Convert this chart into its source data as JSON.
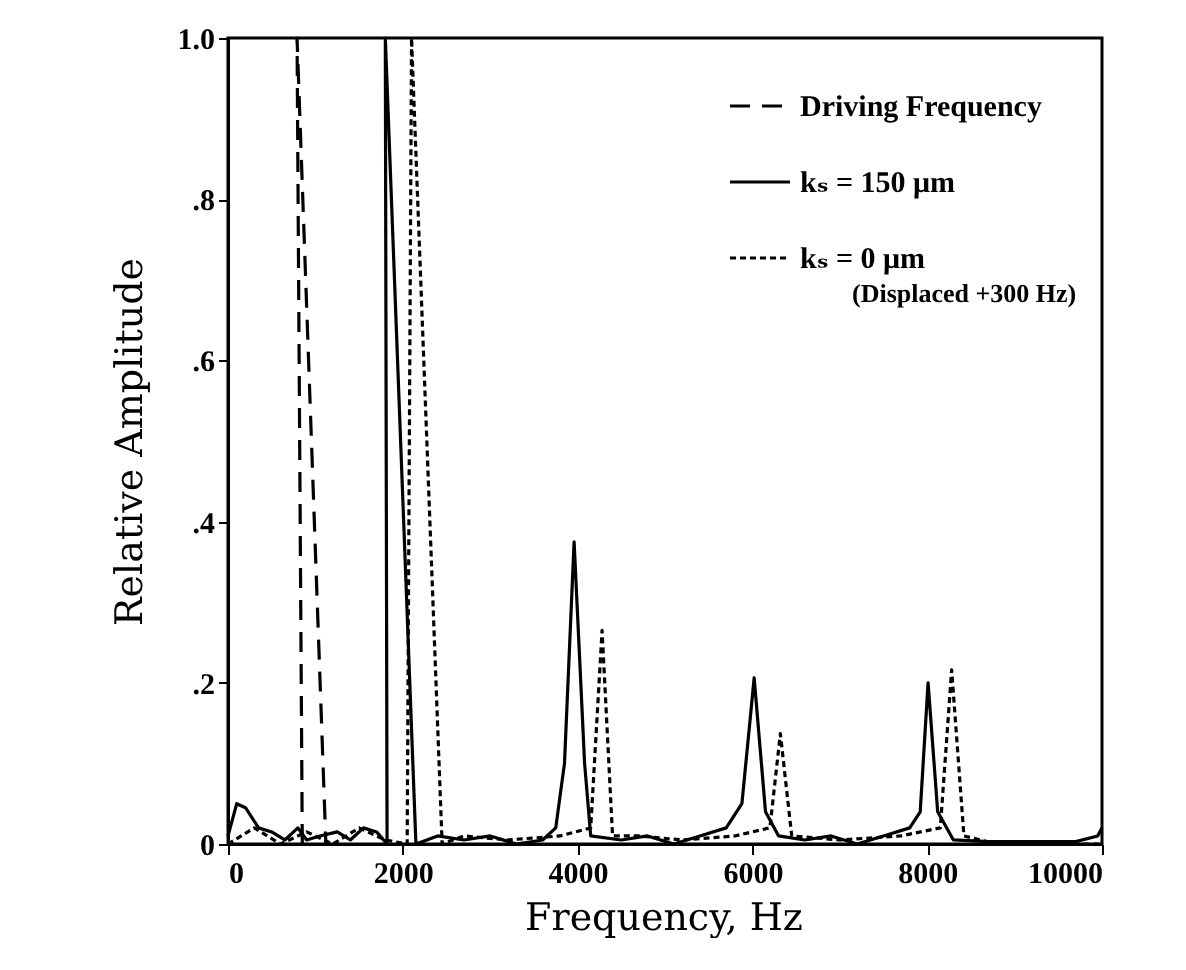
{
  "chart_data": {
    "type": "line",
    "xlabel": "Frequency, Hz",
    "ylabel": "Relative Amplitude",
    "xlim": [
      0,
      10000
    ],
    "xticks": [
      0,
      2000,
      4000,
      6000,
      8000,
      10000
    ],
    "ylim": [
      0,
      1.0
    ],
    "yticks": [
      {
        "value": 0,
        "label": "0"
      },
      {
        "value": 0.2,
        "label": ".2"
      },
      {
        "value": 0.4,
        "label": ".4"
      },
      {
        "value": 0.6,
        "label": ".6"
      },
      {
        "value": 0.8,
        "label": ".8"
      },
      {
        "value": 1.0,
        "label": "1.0"
      }
    ],
    "grid": false,
    "legend": "top right",
    "marker": "none",
    "annotations": [
      "(Displaced +300 Hz)"
    ],
    "series": [
      {
        "name": "Driving Frequency",
        "color": "#000000",
        "line_style": "dashed",
        "x": [
          850,
          790,
          1120
        ],
        "values": [
          0,
          1.0,
          0
        ]
      },
      {
        "name": "kₛ = 150 μm",
        "color": "#000000",
        "line_style": "solid",
        "x": [
          0,
          100,
          200,
          350,
          500,
          650,
          800,
          900,
          1050,
          1250,
          1400,
          1550,
          1700,
          1820,
          1800,
          2150,
          2400,
          2700,
          3000,
          3300,
          3600,
          3750,
          3850,
          3960,
          4080,
          4150,
          4500,
          4800,
          5100,
          5400,
          5700,
          5880,
          6020,
          6150,
          6300,
          6600,
          6900,
          7200,
          7500,
          7800,
          7920,
          8010,
          8120,
          8300,
          8700,
          9200,
          9700,
          9950,
          10000
        ],
        "values": [
          0.01,
          0.05,
          0.045,
          0.02,
          0.015,
          0.005,
          0.02,
          0.005,
          0.01,
          0.015,
          0.005,
          0.02,
          0.015,
          0,
          1.0,
          0,
          0.01,
          0.005,
          0.01,
          0,
          0.005,
          0.02,
          0.1,
          0.375,
          0.1,
          0.01,
          0.005,
          0.01,
          0,
          0.01,
          0.02,
          0.05,
          0.206,
          0.04,
          0.01,
          0.005,
          0.01,
          0,
          0.01,
          0.02,
          0.04,
          0.2,
          0.04,
          0.005,
          0.003,
          0.003,
          0.003,
          0.01,
          0.02
        ]
      },
      {
        "name": "kₛ = 0 μm",
        "color": "#000000",
        "line_style": "dotted",
        "x": [
          0,
          300,
          600,
          900,
          1200,
          1500,
          1800,
          2050,
          2100,
          2450,
          2700,
          3200,
          3800,
          4150,
          4280,
          4400,
          4700,
          5200,
          5800,
          6200,
          6320,
          6450,
          7000,
          7700,
          8150,
          8280,
          8420,
          8800,
          10000
        ],
        "values": [
          0,
          0.02,
          0,
          0.015,
          0,
          0.02,
          0.005,
          0,
          1.0,
          0,
          0.01,
          0.005,
          0.01,
          0.02,
          0.265,
          0.01,
          0.01,
          0.005,
          0.01,
          0.02,
          0.137,
          0.01,
          0.005,
          0.01,
          0.02,
          0.216,
          0.01,
          0,
          0
        ]
      }
    ]
  }
}
